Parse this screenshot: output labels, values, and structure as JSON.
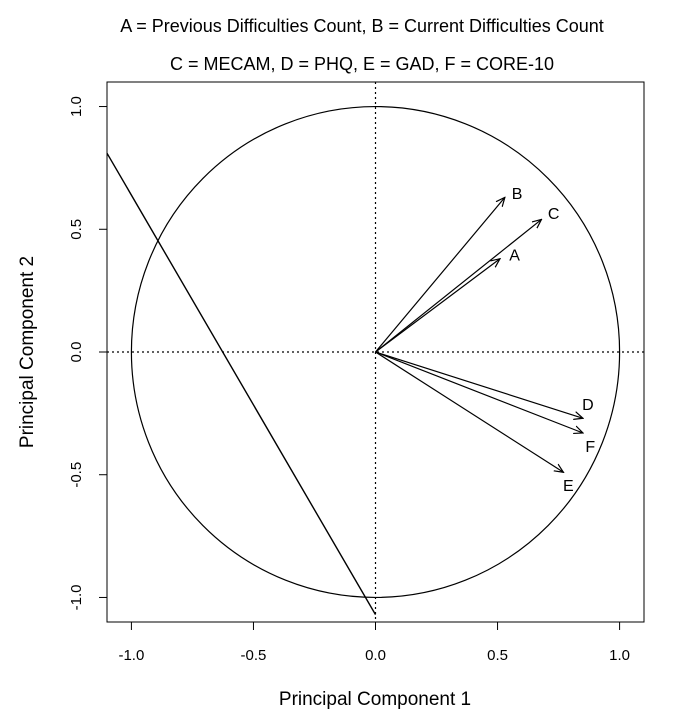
{
  "chart_data": {
    "type": "biplot",
    "title_lines": [
      "A = Previous Difficulties Count, B = Current Difficulties Count",
      "C = MECAM, D = PHQ, E = GAD, F = CORE-10"
    ],
    "xlabel": "Principal Component 1",
    "ylabel": "Principal Component 2",
    "xlim": [
      -1.1,
      1.1
    ],
    "ylim": [
      -1.1,
      1.1
    ],
    "xticks": [
      -1.0,
      -0.5,
      0.0,
      0.5,
      1.0
    ],
    "yticks": [
      -1.0,
      -0.5,
      0.0,
      0.5,
      1.0
    ],
    "xtick_labels": [
      "-1.0",
      "-0.5",
      "0.0",
      "0.5",
      "1.0"
    ],
    "ytick_labels": [
      "-1.0",
      "-0.5",
      "0.0",
      "0.5",
      "1.0"
    ],
    "unit_circle_radius": 1.0,
    "reference_lines": {
      "x": 0,
      "y": 0,
      "style": "dotted"
    },
    "line": {
      "x1": -1.1,
      "y1": 0.81,
      "x2": 0.0,
      "y2": -1.07
    },
    "arrows": [
      {
        "label": "A",
        "x": 0.51,
        "y": 0.38,
        "label_x": 0.57,
        "label_y": 0.39
      },
      {
        "label": "B",
        "x": 0.53,
        "y": 0.63,
        "label_x": 0.58,
        "label_y": 0.64
      },
      {
        "label": "C",
        "x": 0.68,
        "y": 0.54,
        "label_x": 0.73,
        "label_y": 0.56
      },
      {
        "label": "D",
        "x": 0.85,
        "y": -0.27,
        "label_x": 0.87,
        "label_y": -0.22
      },
      {
        "label": "E",
        "x": 0.77,
        "y": -0.49,
        "label_x": 0.79,
        "label_y": -0.55
      },
      {
        "label": "F",
        "x": 0.85,
        "y": -0.33,
        "label_x": 0.88,
        "label_y": -0.39
      }
    ]
  }
}
